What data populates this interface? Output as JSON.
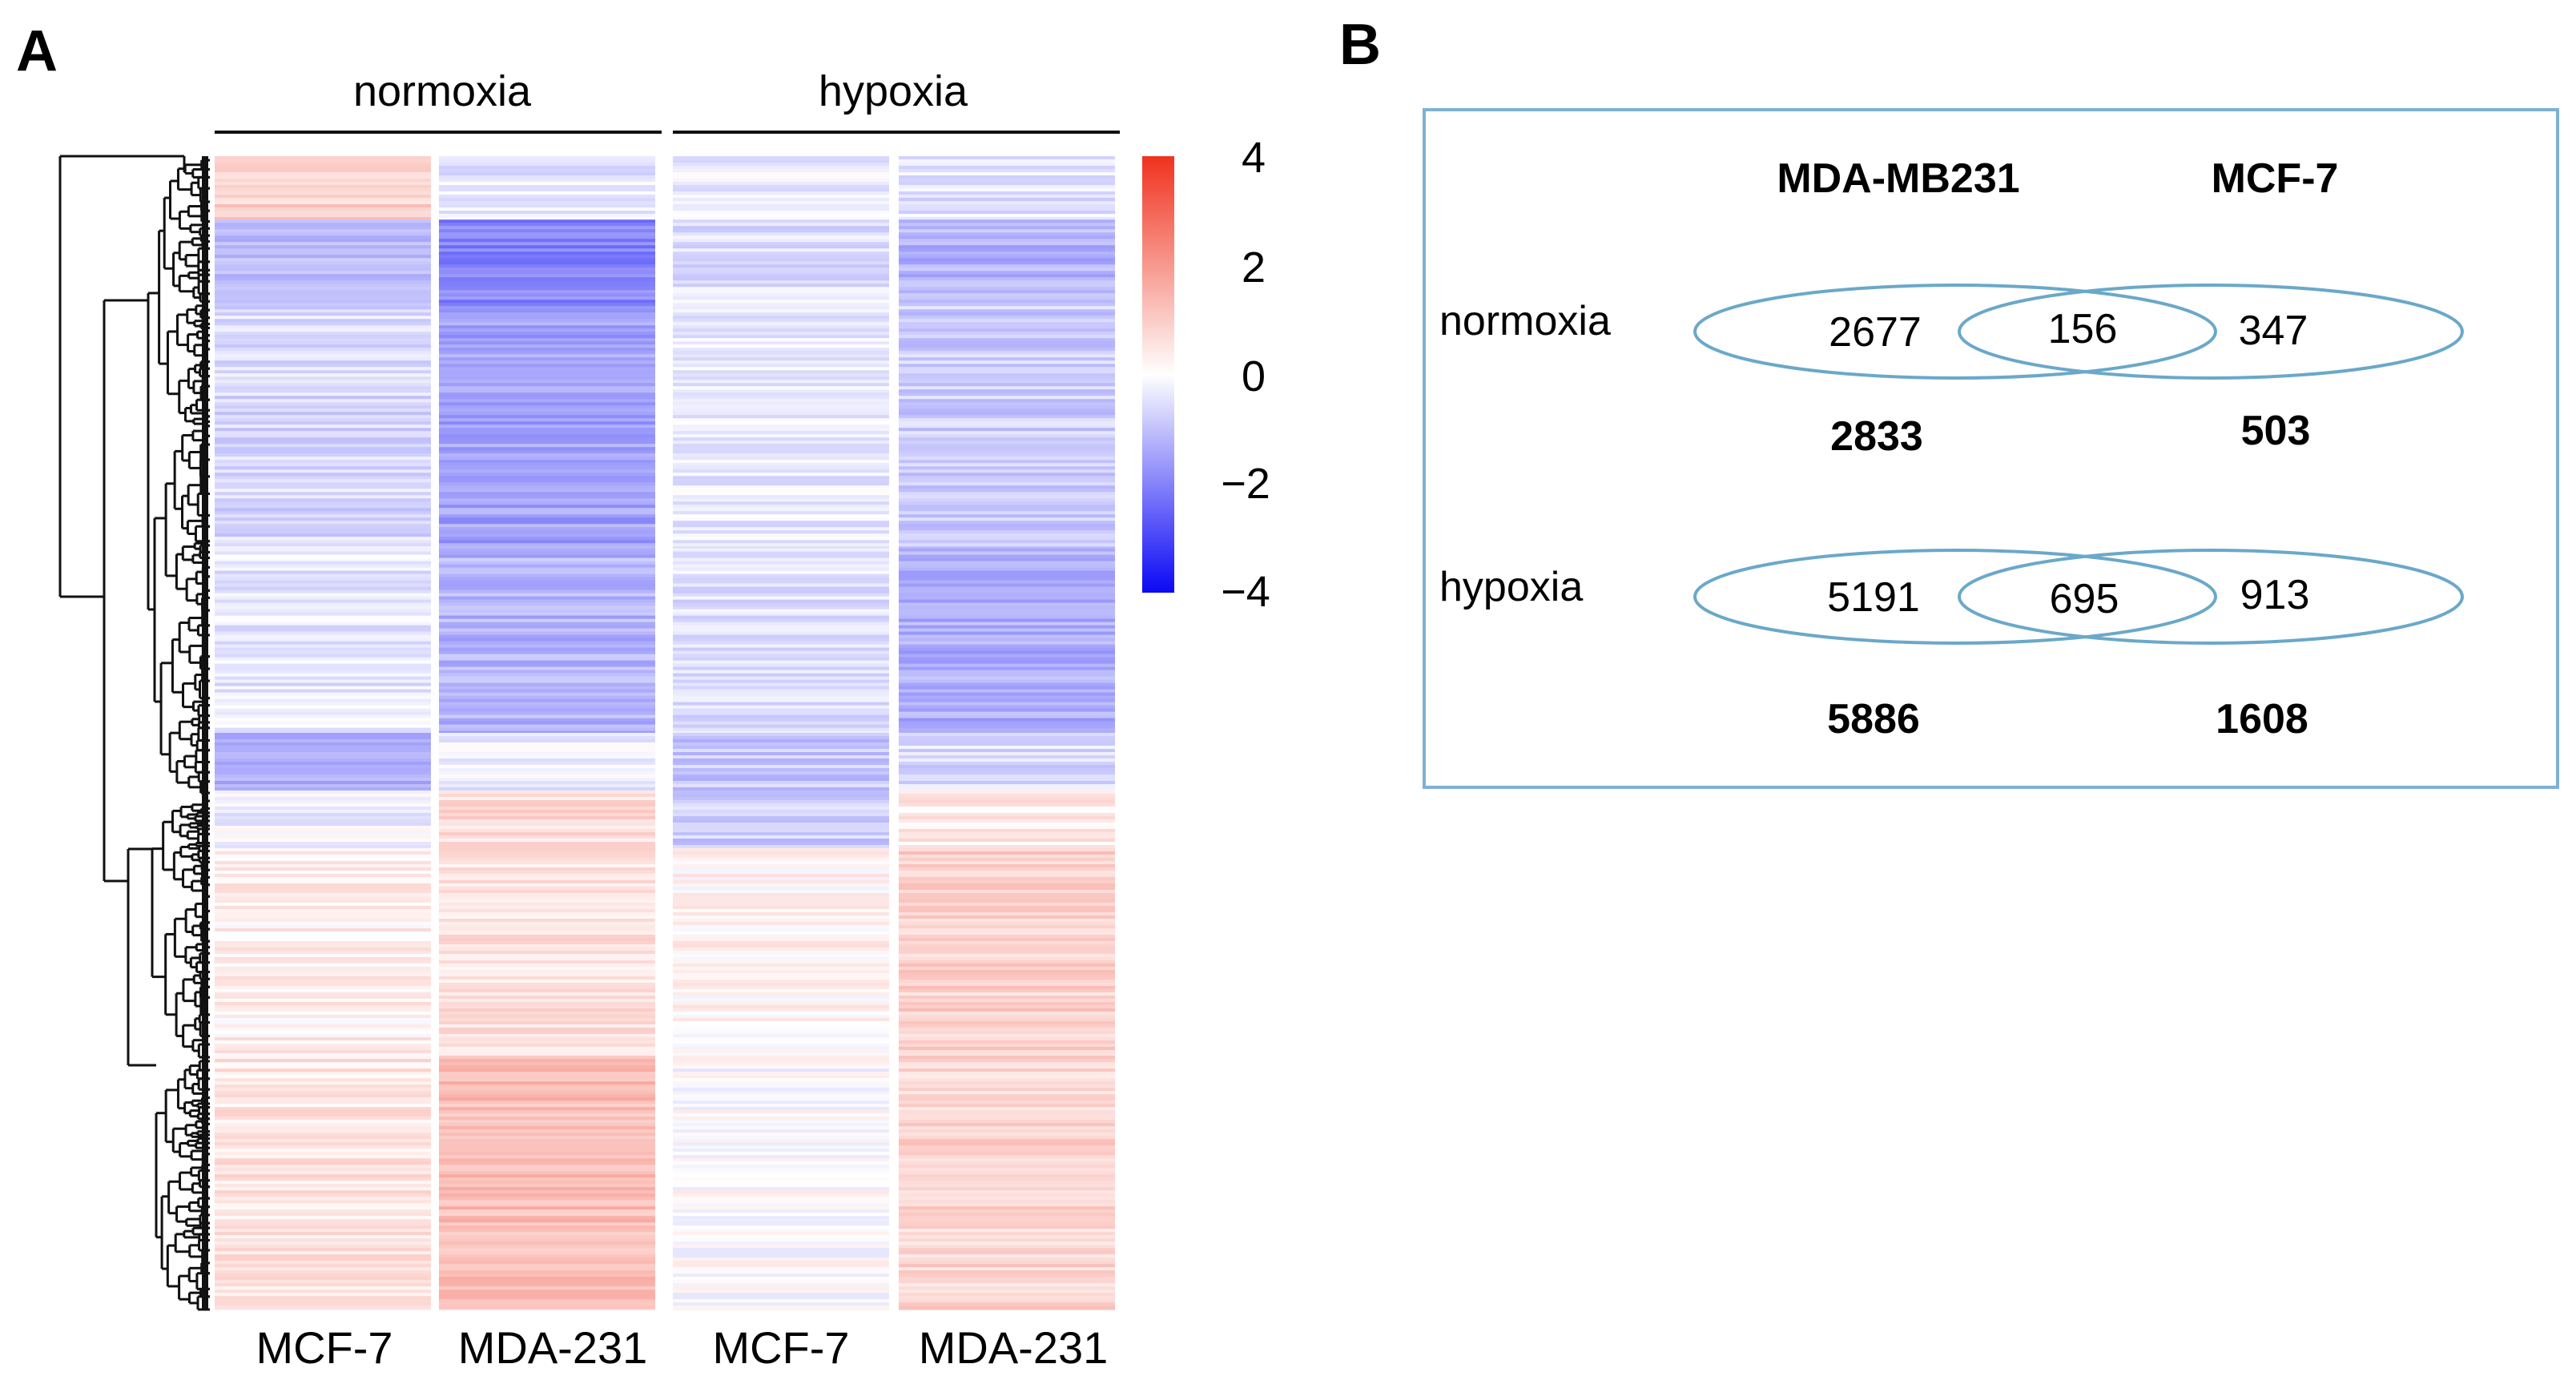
{
  "colors": {
    "low": "#0b08f5",
    "mid": "#ffffff",
    "high": "#f0321e",
    "venn_stroke": "#6aa8c9",
    "panel_border": "#7fb0d4"
  },
  "panel_a": {
    "label": "A",
    "groups": [
      "normoxia",
      "hypoxia"
    ],
    "columns": [
      "MCF-7",
      "MDA-231",
      "MCF-7",
      "MDA-231"
    ]
  },
  "chart_data": [
    {
      "type": "heatmap",
      "panel": "A",
      "title": "",
      "column_groups": [
        {
          "name": "normoxia",
          "columns": [
            "MCF-7",
            "MDA-231"
          ]
        },
        {
          "name": "hypoxia",
          "columns": [
            "MCF-7",
            "MDA-231"
          ]
        }
      ],
      "x_labels": [
        "MCF-7",
        "MDA-231",
        "MCF-7",
        "MDA-231"
      ],
      "color_scale": {
        "min": -4,
        "max": 4,
        "ticks": [
          "4",
          "2",
          "0",
          "−2",
          "−4"
        ],
        "colors": [
          "#0b08f5",
          "#ffffff",
          "#f0321e"
        ]
      },
      "row_dendrogram": true,
      "blocks": [
        {
          "rows_from": 0.0,
          "rows_to": 0.055,
          "values": [
            0.9,
            -0.4,
            -0.3,
            -0.5
          ]
        },
        {
          "rows_from": 0.055,
          "rows_to": 0.13,
          "values": [
            -1.0,
            -2.0,
            -0.5,
            -1.2
          ]
        },
        {
          "rows_from": 0.13,
          "rows_to": 0.34,
          "values": [
            -0.6,
            -1.5,
            -0.3,
            -0.8
          ]
        },
        {
          "rows_from": 0.34,
          "rows_to": 0.5,
          "values": [
            -0.4,
            -1.2,
            -0.5,
            -1.3
          ]
        },
        {
          "rows_from": 0.5,
          "rows_to": 0.55,
          "values": [
            -1.3,
            -0.3,
            -0.9,
            -0.6
          ]
        },
        {
          "rows_from": 0.55,
          "rows_to": 0.6,
          "values": [
            -0.2,
            0.7,
            -0.8,
            0.4
          ]
        },
        {
          "rows_from": 0.6,
          "rows_to": 0.78,
          "values": [
            0.3,
            0.6,
            0.2,
            0.9
          ]
        },
        {
          "rows_from": 0.78,
          "rows_to": 1.0,
          "values": [
            0.5,
            1.3,
            0.0,
            0.8
          ]
        }
      ]
    },
    {
      "type": "venn",
      "panel": "B",
      "sets": [
        "MDA-MB231",
        "MCF-7"
      ],
      "rows": [
        {
          "condition": "normoxia",
          "only_a": 2677,
          "overlap": 156,
          "only_b": 347,
          "total_a": 2833,
          "total_b": 503
        },
        {
          "condition": "hypoxia",
          "only_a": 5191,
          "overlap": 695,
          "only_b": 913,
          "total_a": 5886,
          "total_b": 1608
        }
      ]
    }
  ],
  "panel_b": {
    "label": "B",
    "set_a": "MDA-MB231",
    "set_b": "MCF-7",
    "normoxia": {
      "label": "normoxia",
      "only_a": "2677",
      "overlap": "156",
      "only_b": "347",
      "total_a": "2833",
      "total_b": "503"
    },
    "hypoxia": {
      "label": "hypoxia",
      "only_a": "5191",
      "overlap": "695",
      "only_b": "913",
      "total_a": "5886",
      "total_b": "1608"
    }
  }
}
